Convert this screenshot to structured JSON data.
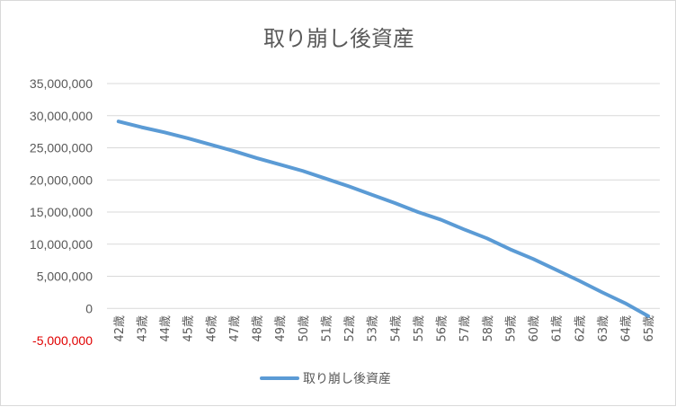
{
  "chart_data": {
    "type": "line",
    "title": "取り崩し後資産",
    "categories": [
      "42歳",
      "43歳",
      "44歳",
      "45歳",
      "46歳",
      "47歳",
      "48歳",
      "49歳",
      "50歳",
      "51歳",
      "52歳",
      "53歳",
      "54歳",
      "55歳",
      "56歳",
      "57歳",
      "58歳",
      "59歳",
      "60歳",
      "61歳",
      "62歳",
      "63歳",
      "64歳",
      "65歳"
    ],
    "series": [
      {
        "name": "取り崩し後資産",
        "color": "#5b9bd5",
        "values": [
          29100000,
          28200000,
          27400000,
          26500000,
          25500000,
          24500000,
          23400000,
          22400000,
          21400000,
          20200000,
          19000000,
          17700000,
          16400000,
          15000000,
          13800000,
          12300000,
          10900000,
          9200000,
          7700000,
          6000000,
          4300000,
          2500000,
          800000,
          -1200000
        ]
      }
    ],
    "ylim": [
      -5000000,
      35000000
    ],
    "yticks": [
      35000000,
      30000000,
      25000000,
      20000000,
      15000000,
      10000000,
      5000000,
      0,
      -5000000
    ],
    "ytick_labels": [
      "35,000,000",
      "30,000,000",
      "25,000,000",
      "20,000,000",
      "15,000,000",
      "10,000,000",
      "5,000,000",
      "0",
      "-5,000,000"
    ],
    "negative_label_color": "#e00000",
    "grid": true,
    "legend": "bottom"
  }
}
